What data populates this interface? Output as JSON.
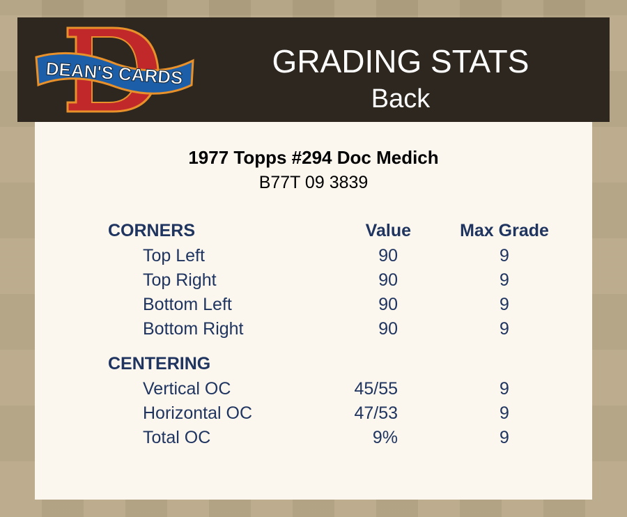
{
  "header": {
    "logo_text": "DEAN'S CARDS",
    "title": "GRADING STATS",
    "subtitle": "Back"
  },
  "card": {
    "name": "1977 Topps #294 Doc Medich",
    "cert": "B77T 09 3839"
  },
  "columns": {
    "value": "Value",
    "max_grade": "Max Grade"
  },
  "sections": [
    {
      "title": "CORNERS",
      "rows": [
        {
          "label": "Top Left",
          "value": "90",
          "max": "9"
        },
        {
          "label": "Top Right",
          "value": "90",
          "max": "9"
        },
        {
          "label": "Bottom Left",
          "value": "90",
          "max": "9"
        },
        {
          "label": "Bottom Right",
          "value": "90",
          "max": "9"
        }
      ]
    },
    {
      "title": "CENTERING",
      "rows": [
        {
          "label": "Vertical OC",
          "value": "45/55",
          "max": "9"
        },
        {
          "label": "Horizontal OC",
          "value": "47/53",
          "max": "9"
        },
        {
          "label": "Total OC",
          "value": "9%",
          "max": "9"
        }
      ]
    }
  ],
  "colors": {
    "text": "#1f3560",
    "header_bg": "#2e271f",
    "panel_bg": "#fbf6ee",
    "logo_red": "#c0282a",
    "logo_blue": "#1d5ea8"
  }
}
